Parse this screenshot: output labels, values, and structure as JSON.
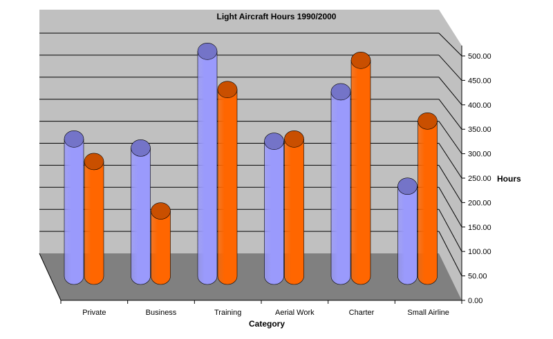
{
  "colors": {
    "back_wall": "#c0c0c0",
    "floor": "#808080",
    "grid": "#000000",
    "series1_fill": "#9a9afc",
    "series1_top": "#7474c8",
    "series2_fill": "#ff6600",
    "series2_top": "#c94f00"
  },
  "chart_data": {
    "type": "bar",
    "style": "3d-cylinder",
    "title": "Light Aircraft Hours 1990/2000",
    "xlabel": "Category",
    "ylabel": "Hours",
    "ylim": [
      0,
      500
    ],
    "y_ticks": [
      "0.00",
      "50.00",
      "100.00",
      "150.00",
      "200.00",
      "250.00",
      "300.00",
      "350.00",
      "400.00",
      "450.00",
      "500.00"
    ],
    "grid": true,
    "legend": "none",
    "categories": [
      "Private",
      "Business",
      "Training",
      "Aerial Work",
      "Charter",
      "Small Airline"
    ],
    "series": [
      {
        "values": [
          305,
          285,
          500,
          300,
          410,
          200
        ]
      },
      {
        "values": [
          255,
          145,
          415,
          305,
          480,
          345
        ]
      }
    ]
  }
}
